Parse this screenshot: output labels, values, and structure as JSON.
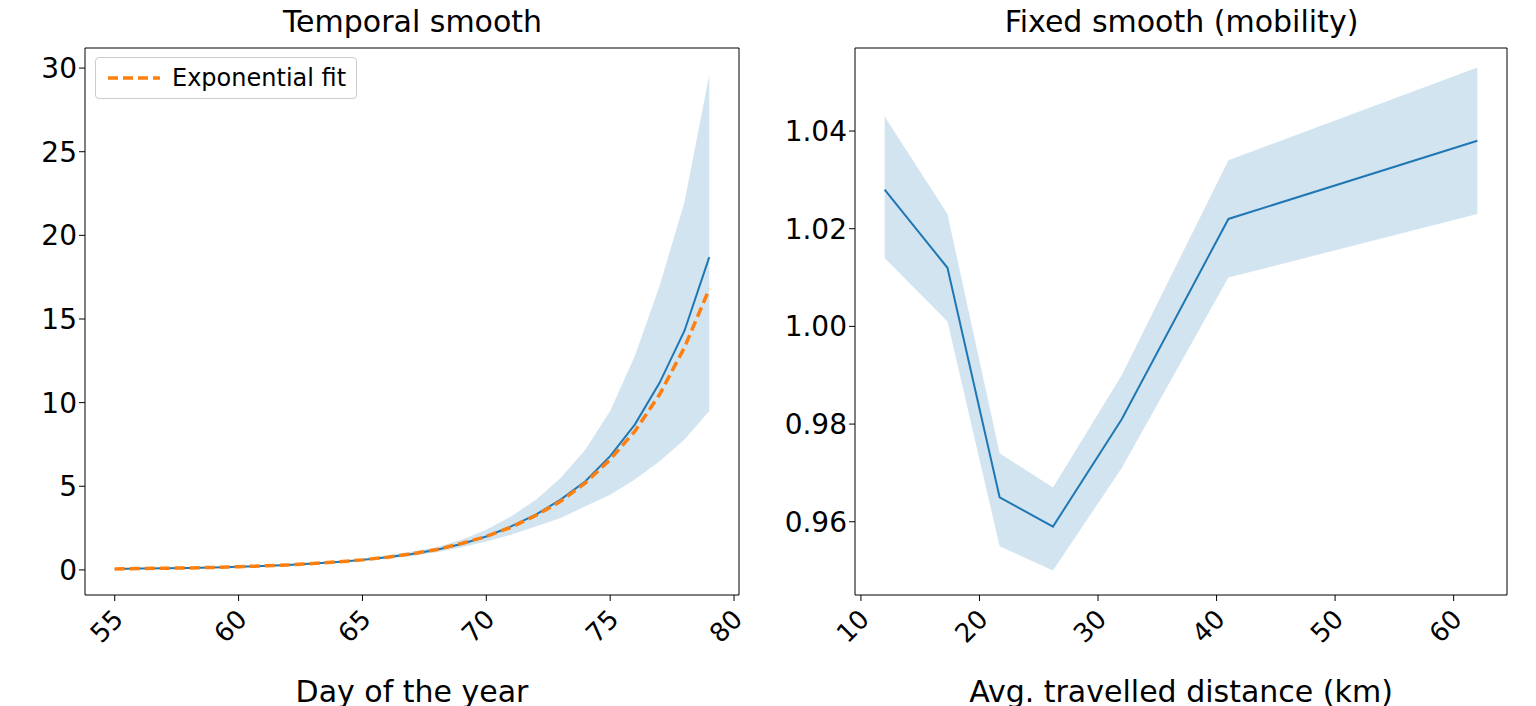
{
  "chart_data": [
    {
      "type": "line",
      "title": "Temporal smooth",
      "x_label": "Day of the year",
      "x": [
        55,
        56,
        57,
        58,
        59,
        60,
        61,
        62,
        63,
        64,
        65,
        66,
        67,
        68,
        69,
        70,
        71,
        72,
        73,
        74,
        75,
        76,
        77,
        78,
        79
      ],
      "xlim": [
        53.8,
        80.2
      ],
      "xticks": [
        55,
        60,
        65,
        70,
        75,
        80
      ],
      "ylim": [
        -1.5,
        31.2
      ],
      "yticks": [
        0,
        5,
        10,
        15,
        20,
        25,
        30
      ],
      "legend": "upper left",
      "series": [
        {
          "color": "#1f77b4",
          "line_style": "solid",
          "values": [
            0.06,
            0.08,
            0.1,
            0.12,
            0.15,
            0.19,
            0.24,
            0.3,
            0.38,
            0.48,
            0.6,
            0.75,
            0.95,
            1.2,
            1.55,
            2.0,
            2.6,
            3.3,
            4.2,
            5.3,
            6.8,
            8.7,
            11.2,
            14.3,
            18.7
          ],
          "lower": [
            0.05,
            0.06,
            0.08,
            0.1,
            0.13,
            0.16,
            0.21,
            0.26,
            0.33,
            0.42,
            0.53,
            0.66,
            0.83,
            1.05,
            1.35,
            1.7,
            2.1,
            2.6,
            3.1,
            3.8,
            4.5,
            5.4,
            6.5,
            7.8,
            9.5
          ],
          "upper": [
            0.08,
            0.1,
            0.12,
            0.15,
            0.18,
            0.22,
            0.28,
            0.35,
            0.44,
            0.55,
            0.68,
            0.86,
            1.1,
            1.35,
            1.8,
            2.4,
            3.2,
            4.2,
            5.5,
            7.2,
            9.5,
            12.8,
            17.0,
            22.0,
            29.6
          ]
        },
        {
          "name": "Exponential fit",
          "color": "#ff7f0e",
          "line_style": "dashed",
          "values": [
            0.06,
            0.08,
            0.1,
            0.12,
            0.15,
            0.19,
            0.24,
            0.3,
            0.38,
            0.48,
            0.6,
            0.76,
            0.96,
            1.22,
            1.58,
            2.0,
            2.55,
            3.25,
            4.1,
            5.2,
            6.6,
            8.3,
            10.5,
            13.3,
            16.8
          ]
        }
      ]
    },
    {
      "type": "line",
      "title": "Fixed smooth (mobility)",
      "x_label": "Avg. travelled distance (km)",
      "x": [
        12,
        17.3,
        21.7,
        26.2,
        32,
        41,
        62
      ],
      "xlim": [
        9.5,
        64.5
      ],
      "xticks": [
        10,
        20,
        30,
        40,
        50,
        60
      ],
      "ylim": [
        0.945,
        1.057
      ],
      "yticks": [
        0.96,
        0.98,
        {
          "value": 1,
          "label": "1.00"
        },
        1.02,
        1.04
      ],
      "series": [
        {
          "color": "#1f77b4",
          "line_style": "solid",
          "values": [
            1.028,
            1.012,
            0.965,
            0.959,
            0.981,
            1.022,
            1.038
          ],
          "lower": [
            1.014,
            1.001,
            0.955,
            0.95,
            0.971,
            1.01,
            1.023
          ],
          "upper": [
            1.043,
            1.023,
            0.974,
            0.967,
            0.99,
            1.034,
            1.053
          ]
        }
      ]
    }
  ]
}
